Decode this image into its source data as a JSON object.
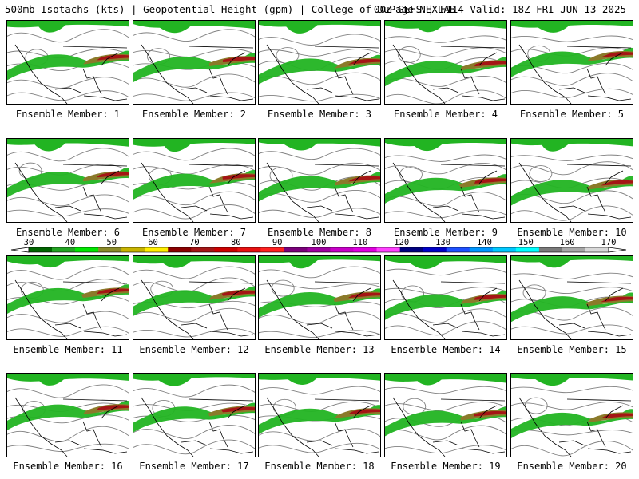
{
  "header": {
    "left": "500mb Isotachs (kts) | Geopotential Height (gpm) | College of DuPage NEXLAB",
    "right": "00Z GEFS | F114 Valid: 18Z FRI JUN 13 2025"
  },
  "panel_label_prefix": "Ensemble Member:",
  "members": [
    {
      "label": "Ensemble Member: 1"
    },
    {
      "label": "Ensemble Member: 2"
    },
    {
      "label": "Ensemble Member: 3"
    },
    {
      "label": "Ensemble Member: 4"
    },
    {
      "label": "Ensemble Member: 5"
    },
    {
      "label": "Ensemble Member: 6"
    },
    {
      "label": "Ensemble Member: 7"
    },
    {
      "label": "Ensemble Member: 8"
    },
    {
      "label": "Ensemble Member: 9"
    },
    {
      "label": "Ensemble Member: 10"
    },
    {
      "label": "Ensemble Member: 11"
    },
    {
      "label": "Ensemble Member: 12"
    },
    {
      "label": "Ensemble Member: 13"
    },
    {
      "label": "Ensemble Member: 14"
    },
    {
      "label": "Ensemble Member: 15"
    },
    {
      "label": "Ensemble Member: 16"
    },
    {
      "label": "Ensemble Member: 17"
    },
    {
      "label": "Ensemble Member: 18"
    },
    {
      "label": "Ensemble Member: 19"
    },
    {
      "label": "Ensemble Member: 20"
    }
  ],
  "colorbar": {
    "ticks": [
      "30",
      "40",
      "50",
      "60",
      "70",
      "80",
      "90",
      "100",
      "110",
      "120",
      "130",
      "140",
      "150",
      "160",
      "170"
    ],
    "colors": [
      "#006400",
      "#22a322",
      "#00e600",
      "#8b8b2a",
      "#c8b400",
      "#ffee00",
      "#8b0000",
      "#a51515",
      "#cc0000",
      "#e81010",
      "#ff2020",
      "#7a007a",
      "#a000a0",
      "#c800c8",
      "#e000e0",
      "#ff40ff",
      "#000080",
      "#0000c8",
      "#1e50ff",
      "#0096ff",
      "#00c8ff",
      "#00ffff",
      "#7a7a7a",
      "#a8a8a8",
      "#d8d8d8"
    ]
  },
  "map_colors": {
    "jet_light": "#22b422",
    "jet_mid": "#8b7a2a",
    "jet_core": "#a51515",
    "height_contour": "#808080",
    "coastline": "#000000"
  }
}
